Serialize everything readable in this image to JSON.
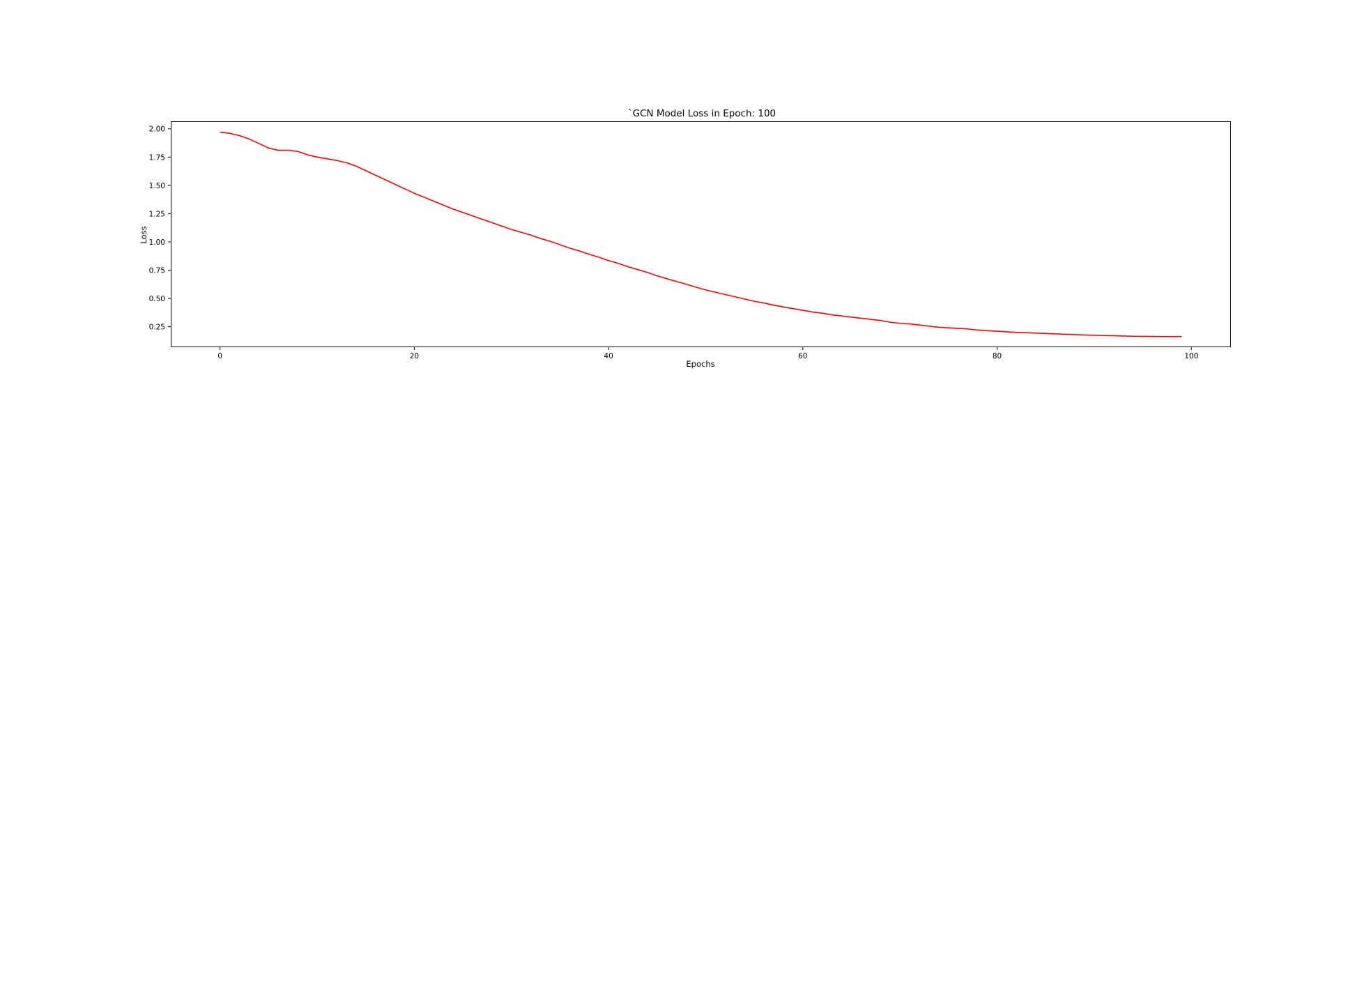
{
  "chart_data": {
    "type": "line",
    "title": "`GCN Model Loss in Epoch: 100",
    "xlabel": "Epochs",
    "ylabel": "Loss",
    "xlim": [
      -5,
      104
    ],
    "ylim": [
      0.075,
      2.06
    ],
    "xticks": [
      0,
      20,
      40,
      60,
      80,
      100
    ],
    "xtick_labels": [
      "0",
      "20",
      "40",
      "60",
      "80",
      "100"
    ],
    "yticks": [
      0.25,
      0.5,
      0.75,
      1.0,
      1.25,
      1.5,
      1.75,
      2.0
    ],
    "ytick_labels": [
      "0.25",
      "0.50",
      "0.75",
      "1.00",
      "1.25",
      "1.50",
      "1.75",
      "2.00"
    ],
    "grid": false,
    "legend": "none",
    "series": [
      {
        "color": "#ff0000",
        "x": [
          0,
          1,
          2,
          3,
          4,
          5,
          6,
          7,
          8,
          9,
          10,
          11,
          12,
          13,
          14,
          15,
          16,
          17,
          18,
          19,
          20,
          21,
          22,
          23,
          24,
          25,
          26,
          27,
          28,
          29,
          30,
          31,
          32,
          33,
          34,
          35,
          36,
          37,
          38,
          39,
          40,
          41,
          42,
          43,
          44,
          45,
          46,
          47,
          48,
          49,
          50,
          51,
          52,
          53,
          54,
          55,
          56,
          57,
          58,
          59,
          60,
          61,
          62,
          63,
          64,
          65,
          66,
          67,
          68,
          69,
          70,
          71,
          72,
          73,
          74,
          75,
          76,
          77,
          78,
          79,
          80,
          81,
          82,
          83,
          84,
          85,
          86,
          87,
          88,
          89,
          90,
          91,
          92,
          93,
          94,
          95,
          96,
          97,
          98,
          99
        ],
        "values": [
          1.97,
          1.96,
          1.94,
          1.91,
          1.87,
          1.83,
          1.81,
          1.81,
          1.8,
          1.77,
          1.75,
          1.735,
          1.72,
          1.7,
          1.67,
          1.63,
          1.59,
          1.55,
          1.51,
          1.47,
          1.43,
          1.395,
          1.36,
          1.325,
          1.29,
          1.26,
          1.23,
          1.2,
          1.17,
          1.14,
          1.11,
          1.085,
          1.06,
          1.03,
          1.005,
          0.975,
          0.945,
          0.92,
          0.89,
          0.865,
          0.835,
          0.81,
          0.78,
          0.755,
          0.73,
          0.7,
          0.675,
          0.65,
          0.625,
          0.6,
          0.575,
          0.555,
          0.535,
          0.515,
          0.495,
          0.475,
          0.46,
          0.44,
          0.425,
          0.41,
          0.395,
          0.38,
          0.37,
          0.355,
          0.345,
          0.335,
          0.325,
          0.315,
          0.305,
          0.29,
          0.28,
          0.275,
          0.265,
          0.255,
          0.245,
          0.24,
          0.235,
          0.23,
          0.22,
          0.215,
          0.21,
          0.205,
          0.2,
          0.197,
          0.193,
          0.19,
          0.187,
          0.183,
          0.18,
          0.177,
          0.175,
          0.172,
          0.17,
          0.168,
          0.166,
          0.165,
          0.164,
          0.163,
          0.163,
          0.163
        ]
      }
    ]
  }
}
